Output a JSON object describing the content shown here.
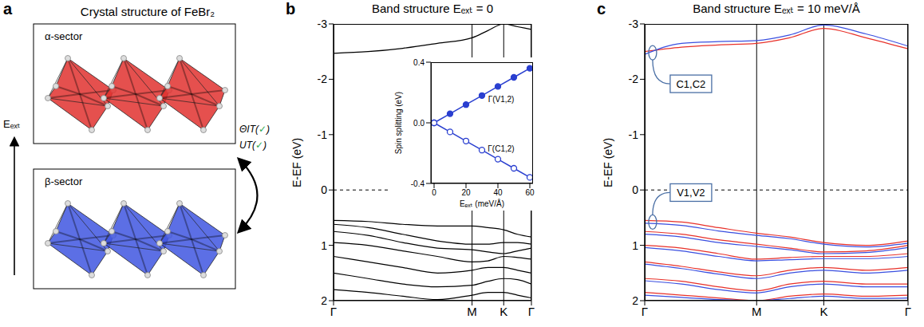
{
  "diagram": {
    "panel": "a",
    "title": "Crystal structure of FeBr₂",
    "sectors": [
      {
        "label": "α-sector",
        "color": "#e0312f"
      },
      {
        "label": "β-sector",
        "color": "#3f56e0"
      }
    ],
    "field_label": "Eₑₓₜ",
    "symmetries": [
      "ΘIT(✓)",
      "UT(✓)"
    ]
  },
  "chart_data": [
    {
      "panel": "b",
      "type": "line",
      "title": "Band structure Eₑₓₜ = 0",
      "y_label": "E-EF (eV)",
      "grid": "x",
      "fermi_level": 0,
      "x": [
        0,
        0.175,
        0.35,
        0.525,
        0.7,
        0.78,
        0.86,
        0.93,
        1
      ],
      "xlim": [
        0,
        1
      ],
      "xticks": [
        {
          "value": 0,
          "label": "Γ"
        },
        {
          "value": 0.7,
          "label": "M"
        },
        {
          "value": 0.86,
          "label": "K"
        },
        {
          "value": 1,
          "label": "Γ"
        }
      ],
      "ylim": [
        2,
        -3
      ],
      "yticks": [
        -3,
        -2,
        -1,
        0,
        1,
        2
      ],
      "series": [
        {
          "color": "#000000",
          "values": [
            -2.47,
            -2.5,
            -2.56,
            -2.65,
            -2.75,
            -2.88,
            -3.0,
            -2.95,
            -2.9
          ]
        },
        {
          "color": "#000000",
          "values": [
            0.55,
            0.57,
            0.62,
            0.65,
            0.65,
            0.68,
            0.72,
            0.8,
            0.85
          ]
        },
        {
          "color": "#000000",
          "values": [
            0.62,
            0.68,
            0.8,
            0.92,
            0.98,
            0.98,
            0.95,
            0.95,
            0.98
          ]
        },
        {
          "color": "#000000",
          "values": [
            0.75,
            0.82,
            0.95,
            1.05,
            1.08,
            1.12,
            1.15,
            1.1,
            1.05
          ]
        },
        {
          "color": "#000000",
          "values": [
            0.95,
            1.0,
            1.1,
            1.2,
            1.3,
            1.28,
            1.2,
            1.22,
            1.25
          ]
        },
        {
          "color": "#000000",
          "values": [
            1.2,
            1.3,
            1.4,
            1.5,
            1.45,
            1.4,
            1.4,
            1.45,
            1.5
          ]
        },
        {
          "color": "#000000",
          "values": [
            1.5,
            1.6,
            1.7,
            1.75,
            1.72,
            1.65,
            1.6,
            1.62,
            1.7
          ]
        },
        {
          "color": "#000000",
          "values": [
            1.8,
            1.85,
            1.92,
            1.98,
            1.9,
            1.85,
            1.85,
            1.9,
            1.95
          ]
        }
      ],
      "inset": {
        "type": "line",
        "x_label": "Eₑₓₜ (meV/Å)",
        "y_label": "Spin splitting (eV)",
        "x": [
          0,
          10,
          20,
          30,
          40,
          50,
          60
        ],
        "xlim": [
          -2,
          62
        ],
        "xticks": [
          0,
          20,
          40,
          60
        ],
        "ylim": [
          -0.4,
          0.4
        ],
        "yticks": [
          -0.4,
          {
            "value": 0,
            "label": "0.0"
          },
          0.4
        ],
        "series": [
          {
            "name": "Γ(V1,2)",
            "color": "#2a3fd0",
            "marker": "circle",
            "values": [
              0,
              0.06,
              0.12,
              0.18,
              0.24,
              0.3,
              0.36
            ]
          },
          {
            "name": "Γ(C1,2)",
            "color": "#2a3fd0",
            "marker": "open_circle",
            "values": [
              0,
              -0.06,
              -0.12,
              -0.18,
              -0.24,
              -0.3,
              -0.36
            ]
          }
        ]
      }
    },
    {
      "panel": "c",
      "type": "line",
      "title": "Band structure Eₑₓₜ = 10 meV/Å",
      "y_label": "E-EF (eV)",
      "grid": "x",
      "fermi_level": 0,
      "x": [
        0,
        0.14,
        0.28,
        0.425,
        0.55,
        0.68,
        0.84,
        1
      ],
      "xlim": [
        0,
        1
      ],
      "xticks": [
        {
          "value": 0,
          "label": "Γ"
        },
        {
          "value": 0.425,
          "label": "M"
        },
        {
          "value": 0.68,
          "label": "K"
        },
        {
          "value": 1,
          "label": "Γ"
        }
      ],
      "ylim": [
        2,
        -3
      ],
      "yticks": [
        -3,
        -2,
        -1,
        0,
        1,
        2
      ],
      "series": [
        {
          "color": "#e8312a",
          "values": [
            -2.5,
            -2.58,
            -2.62,
            -2.65,
            -2.75,
            -2.92,
            -2.75,
            -2.55
          ]
        },
        {
          "color": "#3a4fe0",
          "values": [
            -2.45,
            -2.65,
            -2.68,
            -2.7,
            -2.8,
            -2.98,
            -2.82,
            -2.6
          ]
        },
        {
          "color": "#e8312a",
          "values": [
            0.55,
            0.58,
            0.68,
            0.78,
            0.85,
            0.95,
            1.0,
            0.92
          ]
        },
        {
          "color": "#3a4fe0",
          "values": [
            0.6,
            0.64,
            0.74,
            0.82,
            0.88,
            0.98,
            1.03,
            0.96
          ]
        },
        {
          "color": "#e8312a",
          "values": [
            0.75,
            0.8,
            0.9,
            0.98,
            1.05,
            1.12,
            1.1,
            1.0
          ]
        },
        {
          "color": "#3a4fe0",
          "values": [
            0.8,
            0.85,
            0.95,
            1.02,
            1.08,
            1.15,
            1.13,
            1.04
          ]
        },
        {
          "color": "#e8312a",
          "values": [
            1.0,
            1.05,
            1.15,
            1.25,
            1.22,
            1.2,
            1.2,
            1.15
          ]
        },
        {
          "color": "#3a4fe0",
          "values": [
            1.04,
            1.1,
            1.2,
            1.28,
            1.26,
            1.24,
            1.24,
            1.2
          ]
        },
        {
          "color": "#e8312a",
          "values": [
            1.3,
            1.38,
            1.48,
            1.55,
            1.45,
            1.4,
            1.45,
            1.4
          ]
        },
        {
          "color": "#3a4fe0",
          "values": [
            1.34,
            1.42,
            1.52,
            1.6,
            1.5,
            1.45,
            1.5,
            1.45
          ]
        },
        {
          "color": "#e8312a",
          "values": [
            1.6,
            1.65,
            1.75,
            1.82,
            1.7,
            1.65,
            1.7,
            1.7
          ]
        },
        {
          "color": "#3a4fe0",
          "values": [
            1.64,
            1.7,
            1.8,
            1.86,
            1.75,
            1.7,
            1.75,
            1.75
          ]
        },
        {
          "color": "#e8312a",
          "values": [
            1.85,
            1.9,
            1.95,
            2.0,
            1.92,
            1.88,
            1.92,
            1.9
          ]
        },
        {
          "color": "#3a4fe0",
          "values": [
            1.9,
            1.94,
            1.98,
            2.0,
            1.96,
            1.92,
            1.96,
            1.95
          ]
        }
      ],
      "annotations": [
        {
          "text": "C1,C2",
          "x": 0.03,
          "y": -2.48
        },
        {
          "text": "V1,V2",
          "x": 0.03,
          "y": 0.58
        }
      ]
    }
  ]
}
